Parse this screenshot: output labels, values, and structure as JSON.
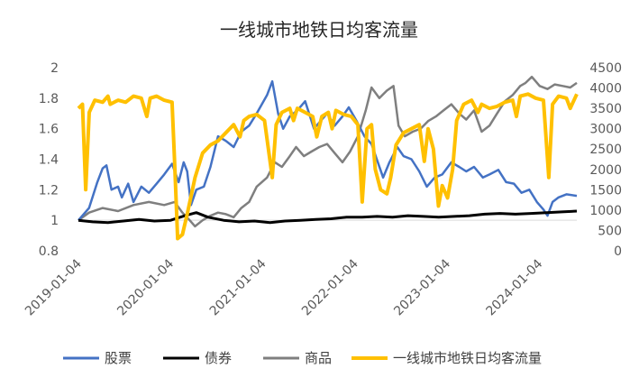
{
  "chart_data": {
    "type": "line",
    "title": "一线城市地铁日均客流量",
    "left_axis": {
      "ylim": [
        0.8,
        2.0
      ],
      "ticks": [
        "0.8",
        "1",
        "1.2",
        "1.4",
        "1.6",
        "1.8",
        "2"
      ]
    },
    "right_axis": {
      "ylim": [
        0,
        4500
      ],
      "ticks": [
        "0",
        "500",
        "1000",
        "1500",
        "2000",
        "2500",
        "3000",
        "3500",
        "4000",
        "4500"
      ]
    },
    "x_range": [
      "2019-01-04",
      "2024-05-31"
    ],
    "x_ticks": [
      "2019-01-04",
      "2020-01-04",
      "2021-01-04",
      "2022-01-04",
      "2023-01-04",
      "2024-01-04"
    ],
    "grid": false,
    "legend_position": "bottom",
    "series": [
      {
        "name": "股票",
        "axis": "left",
        "color": "#4472C4",
        "points": [
          [
            "2019-01-04",
            1.0
          ],
          [
            "2019-02-15",
            1.08
          ],
          [
            "2019-03-20",
            1.25
          ],
          [
            "2019-04-10",
            1.34
          ],
          [
            "2019-04-25",
            1.36
          ],
          [
            "2019-05-15",
            1.2
          ],
          [
            "2019-06-10",
            1.22
          ],
          [
            "2019-06-25",
            1.15
          ],
          [
            "2019-07-20",
            1.24
          ],
          [
            "2019-08-10",
            1.12
          ],
          [
            "2019-09-10",
            1.22
          ],
          [
            "2019-10-10",
            1.18
          ],
          [
            "2019-11-10",
            1.24
          ],
          [
            "2019-12-10",
            1.3
          ],
          [
            "2020-01-10",
            1.37
          ],
          [
            "2020-02-05",
            1.25
          ],
          [
            "2020-02-25",
            1.38
          ],
          [
            "2020-03-10",
            1.32
          ],
          [
            "2020-03-25",
            1.1
          ],
          [
            "2020-04-15",
            1.2
          ],
          [
            "2020-05-15",
            1.22
          ],
          [
            "2020-06-10",
            1.35
          ],
          [
            "2020-07-10",
            1.55
          ],
          [
            "2020-08-10",
            1.52
          ],
          [
            "2020-09-10",
            1.48
          ],
          [
            "2020-10-10",
            1.58
          ],
          [
            "2020-11-10",
            1.62
          ],
          [
            "2020-12-10",
            1.7
          ],
          [
            "2021-01-20",
            1.82
          ],
          [
            "2021-02-10",
            1.91
          ],
          [
            "2021-03-05",
            1.7
          ],
          [
            "2021-03-25",
            1.6
          ],
          [
            "2021-04-20",
            1.68
          ],
          [
            "2021-05-20",
            1.72
          ],
          [
            "2021-06-20",
            1.78
          ],
          [
            "2021-07-25",
            1.6
          ],
          [
            "2021-08-20",
            1.65
          ],
          [
            "2021-09-15",
            1.7
          ],
          [
            "2021-10-15",
            1.62
          ],
          [
            "2021-11-15",
            1.68
          ],
          [
            "2021-12-10",
            1.74
          ],
          [
            "2022-01-10",
            1.65
          ],
          [
            "2022-02-10",
            1.55
          ],
          [
            "2022-03-10",
            1.5
          ],
          [
            "2022-04-25",
            1.28
          ],
          [
            "2022-05-20",
            1.38
          ],
          [
            "2022-06-20",
            1.48
          ],
          [
            "2022-07-15",
            1.42
          ],
          [
            "2022-08-15",
            1.4
          ],
          [
            "2022-09-15",
            1.32
          ],
          [
            "2022-10-15",
            1.22
          ],
          [
            "2022-11-15",
            1.28
          ],
          [
            "2022-12-15",
            1.3
          ],
          [
            "2023-01-20",
            1.38
          ],
          [
            "2023-02-20",
            1.35
          ],
          [
            "2023-03-20",
            1.32
          ],
          [
            "2023-04-20",
            1.35
          ],
          [
            "2023-05-25",
            1.28
          ],
          [
            "2023-06-20",
            1.3
          ],
          [
            "2023-07-25",
            1.33
          ],
          [
            "2023-08-25",
            1.25
          ],
          [
            "2023-09-25",
            1.24
          ],
          [
            "2023-10-25",
            1.18
          ],
          [
            "2023-11-25",
            1.2
          ],
          [
            "2023-12-25",
            1.12
          ],
          [
            "2024-01-20",
            1.07
          ],
          [
            "2024-02-05",
            1.03
          ],
          [
            "2024-02-25",
            1.12
          ],
          [
            "2024-03-20",
            1.15
          ],
          [
            "2024-04-20",
            1.17
          ],
          [
            "2024-05-31",
            1.16
          ]
        ]
      },
      {
        "name": "债券",
        "axis": "left",
        "color": "#000000",
        "points": [
          [
            "2019-01-04",
            1.0
          ],
          [
            "2019-03-01",
            0.99
          ],
          [
            "2019-05-01",
            0.985
          ],
          [
            "2019-07-01",
            0.995
          ],
          [
            "2019-09-01",
            1.005
          ],
          [
            "2019-11-01",
            0.995
          ],
          [
            "2020-01-04",
            1.0
          ],
          [
            "2020-03-01",
            1.03
          ],
          [
            "2020-04-15",
            1.05
          ],
          [
            "2020-06-01",
            1.02
          ],
          [
            "2020-08-01",
            1.0
          ],
          [
            "2020-10-01",
            0.99
          ],
          [
            "2020-12-01",
            0.995
          ],
          [
            "2021-02-01",
            0.985
          ],
          [
            "2021-04-01",
            0.995
          ],
          [
            "2021-06-01",
            1.0
          ],
          [
            "2021-08-01",
            1.005
          ],
          [
            "2021-10-01",
            1.01
          ],
          [
            "2021-12-01",
            1.02
          ],
          [
            "2022-02-01",
            1.02
          ],
          [
            "2022-04-01",
            1.025
          ],
          [
            "2022-06-01",
            1.02
          ],
          [
            "2022-08-01",
            1.03
          ],
          [
            "2022-10-01",
            1.025
          ],
          [
            "2022-12-01",
            1.02
          ],
          [
            "2023-02-01",
            1.025
          ],
          [
            "2023-04-01",
            1.03
          ],
          [
            "2023-06-01",
            1.04
          ],
          [
            "2023-08-01",
            1.045
          ],
          [
            "2023-10-01",
            1.04
          ],
          [
            "2023-12-01",
            1.045
          ],
          [
            "2024-02-01",
            1.05
          ],
          [
            "2024-04-01",
            1.055
          ],
          [
            "2024-05-31",
            1.06
          ]
        ]
      },
      {
        "name": "商品",
        "axis": "left",
        "color": "#7F7F7F",
        "points": [
          [
            "2019-01-04",
            1.0
          ],
          [
            "2019-02-15",
            1.05
          ],
          [
            "2019-04-10",
            1.08
          ],
          [
            "2019-06-10",
            1.06
          ],
          [
            "2019-08-10",
            1.1
          ],
          [
            "2019-10-10",
            1.12
          ],
          [
            "2019-12-10",
            1.1
          ],
          [
            "2020-01-20",
            1.12
          ],
          [
            "2020-02-20",
            1.05
          ],
          [
            "2020-03-20",
            1.0
          ],
          [
            "2020-04-10",
            0.96
          ],
          [
            "2020-05-10",
            1.0
          ],
          [
            "2020-06-10",
            1.03
          ],
          [
            "2020-07-10",
            1.05
          ],
          [
            "2020-08-10",
            1.04
          ],
          [
            "2020-09-10",
            1.02
          ],
          [
            "2020-10-10",
            1.08
          ],
          [
            "2020-11-10",
            1.12
          ],
          [
            "2020-12-10",
            1.22
          ],
          [
            "2021-01-20",
            1.28
          ],
          [
            "2021-02-20",
            1.38
          ],
          [
            "2021-03-20",
            1.35
          ],
          [
            "2021-04-20",
            1.42
          ],
          [
            "2021-05-15",
            1.48
          ],
          [
            "2021-06-15",
            1.42
          ],
          [
            "2021-07-15",
            1.45
          ],
          [
            "2021-08-15",
            1.48
          ],
          [
            "2021-09-15",
            1.5
          ],
          [
            "2021-10-15",
            1.44
          ],
          [
            "2021-11-15",
            1.38
          ],
          [
            "2021-12-15",
            1.45
          ],
          [
            "2022-01-15",
            1.55
          ],
          [
            "2022-02-15",
            1.72
          ],
          [
            "2022-03-10",
            1.87
          ],
          [
            "2022-04-10",
            1.8
          ],
          [
            "2022-05-10",
            1.85
          ],
          [
            "2022-06-05",
            1.88
          ],
          [
            "2022-06-25",
            1.62
          ],
          [
            "2022-07-20",
            1.55
          ],
          [
            "2022-08-20",
            1.58
          ],
          [
            "2022-09-20",
            1.6
          ],
          [
            "2022-10-20",
            1.65
          ],
          [
            "2022-11-20",
            1.68
          ],
          [
            "2022-12-20",
            1.72
          ],
          [
            "2023-01-20",
            1.76
          ],
          [
            "2023-02-20",
            1.7
          ],
          [
            "2023-03-20",
            1.66
          ],
          [
            "2023-04-20",
            1.72
          ],
          [
            "2023-05-20",
            1.58
          ],
          [
            "2023-06-20",
            1.62
          ],
          [
            "2023-07-20",
            1.7
          ],
          [
            "2023-08-20",
            1.78
          ],
          [
            "2023-09-20",
            1.82
          ],
          [
            "2023-10-20",
            1.88
          ],
          [
            "2023-11-10",
            1.9
          ],
          [
            "2023-12-05",
            1.94
          ],
          [
            "2024-01-05",
            1.88
          ],
          [
            "2024-02-05",
            1.86
          ],
          [
            "2024-03-05",
            1.89
          ],
          [
            "2024-04-05",
            1.88
          ],
          [
            "2024-05-05",
            1.87
          ],
          [
            "2024-05-31",
            1.9
          ]
        ]
      },
      {
        "name": "一线城市地铁日均客流量",
        "axis": "right",
        "color": "#FFC000",
        "points": [
          [
            "2019-01-04",
            3500
          ],
          [
            "2019-01-20",
            3600
          ],
          [
            "2019-02-02",
            1500
          ],
          [
            "2019-02-16",
            3400
          ],
          [
            "2019-03-10",
            3700
          ],
          [
            "2019-04-10",
            3650
          ],
          [
            "2019-05-01",
            3800
          ],
          [
            "2019-05-10",
            3600
          ],
          [
            "2019-06-10",
            3700
          ],
          [
            "2019-07-10",
            3650
          ],
          [
            "2019-08-10",
            3800
          ],
          [
            "2019-09-10",
            3750
          ],
          [
            "2019-10-02",
            3300
          ],
          [
            "2019-10-15",
            3750
          ],
          [
            "2019-11-10",
            3800
          ],
          [
            "2019-12-10",
            3700
          ],
          [
            "2020-01-10",
            3650
          ],
          [
            "2020-01-20",
            2200
          ],
          [
            "2020-02-01",
            300
          ],
          [
            "2020-02-20",
            400
          ],
          [
            "2020-03-10",
            900
          ],
          [
            "2020-04-10",
            1800
          ],
          [
            "2020-05-10",
            2400
          ],
          [
            "2020-06-10",
            2600
          ],
          [
            "2020-07-10",
            2700
          ],
          [
            "2020-08-10",
            2900
          ],
          [
            "2020-09-10",
            3100
          ],
          [
            "2020-10-05",
            2800
          ],
          [
            "2020-10-20",
            3200
          ],
          [
            "2020-11-10",
            3300
          ],
          [
            "2020-12-10",
            3350
          ],
          [
            "2021-01-10",
            3200
          ],
          [
            "2021-02-10",
            1800
          ],
          [
            "2021-02-25",
            3100
          ],
          [
            "2021-03-20",
            3400
          ],
          [
            "2021-04-20",
            3500
          ],
          [
            "2021-05-05",
            3200
          ],
          [
            "2021-05-20",
            3500
          ],
          [
            "2021-06-20",
            3400
          ],
          [
            "2021-07-20",
            3300
          ],
          [
            "2021-08-05",
            2800
          ],
          [
            "2021-08-25",
            3300
          ],
          [
            "2021-09-20",
            3400
          ],
          [
            "2021-10-05",
            3000
          ],
          [
            "2021-10-20",
            3450
          ],
          [
            "2021-11-20",
            3350
          ],
          [
            "2021-12-20",
            3300
          ],
          [
            "2022-01-15",
            3100
          ],
          [
            "2022-02-01",
            1200
          ],
          [
            "2022-02-20",
            3000
          ],
          [
            "2022-03-10",
            3100
          ],
          [
            "2022-03-25",
            2000
          ],
          [
            "2022-04-15",
            1500
          ],
          [
            "2022-05-10",
            1400
          ],
          [
            "2022-05-25",
            1800
          ],
          [
            "2022-06-15",
            2600
          ],
          [
            "2022-07-15",
            2900
          ],
          [
            "2022-08-15",
            3000
          ],
          [
            "2022-09-15",
            3100
          ],
          [
            "2022-10-05",
            2200
          ],
          [
            "2022-10-20",
            3000
          ],
          [
            "2022-11-10",
            2500
          ],
          [
            "2022-11-30",
            1100
          ],
          [
            "2022-12-15",
            1600
          ],
          [
            "2023-01-05",
            1300
          ],
          [
            "2023-01-25",
            2000
          ],
          [
            "2023-02-10",
            3200
          ],
          [
            "2023-03-10",
            3600
          ],
          [
            "2023-04-10",
            3700
          ],
          [
            "2023-05-05",
            3400
          ],
          [
            "2023-05-20",
            3600
          ],
          [
            "2023-06-20",
            3500
          ],
          [
            "2023-07-20",
            3550
          ],
          [
            "2023-08-20",
            3650
          ],
          [
            "2023-09-20",
            3700
          ],
          [
            "2023-10-05",
            3300
          ],
          [
            "2023-10-20",
            3800
          ],
          [
            "2023-11-20",
            3850
          ],
          [
            "2023-12-20",
            3750
          ],
          [
            "2024-01-20",
            3700
          ],
          [
            "2024-02-10",
            1800
          ],
          [
            "2024-02-25",
            3600
          ],
          [
            "2024-03-20",
            3800
          ],
          [
            "2024-04-20",
            3750
          ],
          [
            "2024-05-05",
            3500
          ],
          [
            "2024-05-31",
            3850
          ]
        ]
      }
    ]
  }
}
